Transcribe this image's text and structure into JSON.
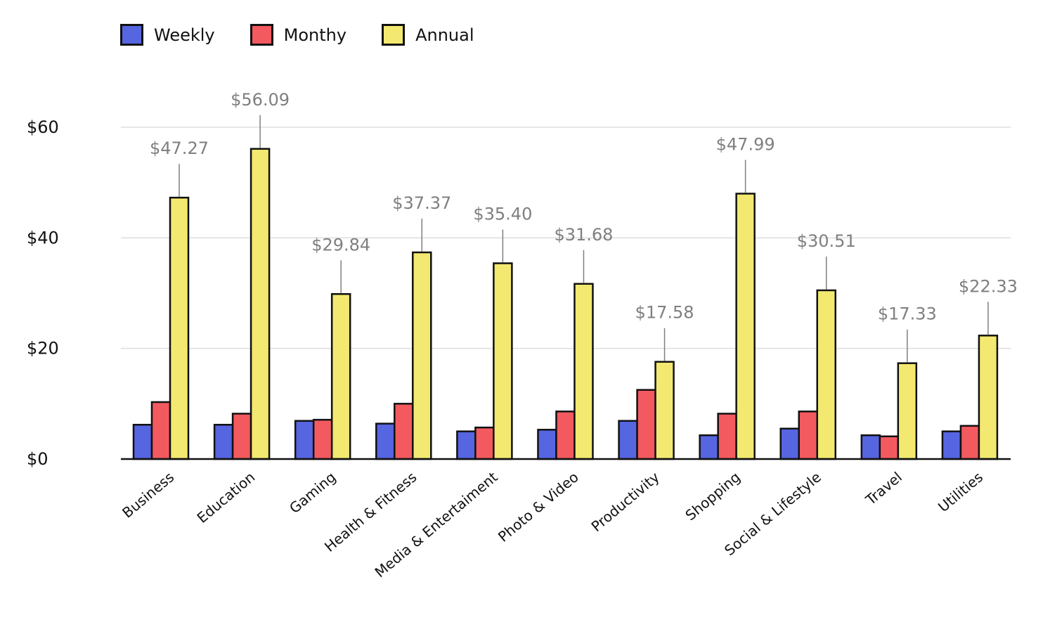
{
  "chart_data": {
    "type": "bar",
    "title": "",
    "xlabel": "",
    "ylabel": "",
    "ylim": [
      0,
      60
    ],
    "yticks": [
      "$0",
      "$20",
      "$40",
      "$60"
    ],
    "ytick_values": [
      0,
      20,
      40,
      60
    ],
    "grid": true,
    "legend_position": "top-left",
    "categories": [
      "Business",
      "Education",
      "Gaming",
      "Health & Fitness",
      "Media & Entertaiment",
      "Photo & Video",
      "Productivity",
      "Shopping",
      "Social & Lifestyle",
      "Travel",
      "Utilities"
    ],
    "series": [
      {
        "name": "Weekly",
        "color": "#5665e0",
        "values": [
          6.2,
          6.2,
          6.9,
          6.4,
          5.0,
          5.3,
          6.9,
          4.3,
          5.5,
          4.3,
          5.0
        ]
      },
      {
        "name": "Monthy",
        "color": "#f25a5f",
        "values": [
          10.3,
          8.2,
          7.1,
          10.0,
          5.7,
          8.6,
          12.5,
          8.2,
          8.6,
          4.1,
          6.0
        ]
      },
      {
        "name": "Annual",
        "color": "#f3e970",
        "values": [
          47.27,
          56.09,
          29.84,
          37.37,
          35.4,
          31.68,
          17.58,
          47.99,
          30.51,
          17.33,
          22.33
        ]
      }
    ],
    "data_labels": [
      "$47.27",
      "$56.09",
      "$29.84",
      "$37.37",
      "$35.40",
      "$31.68",
      "$17.58",
      "$47.99",
      "$30.51",
      "$17.33",
      "$22.33"
    ]
  }
}
